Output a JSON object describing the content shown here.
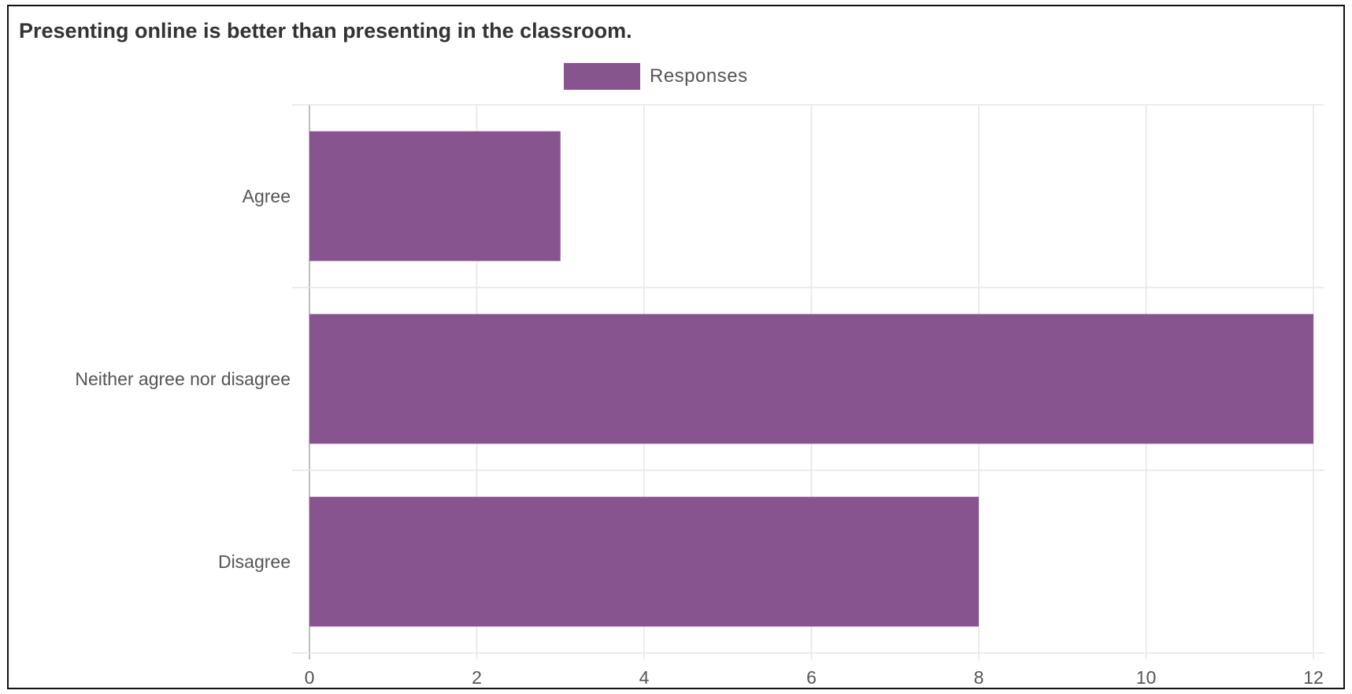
{
  "chart_data": {
    "type": "bar",
    "orientation": "horizontal",
    "title": "Presenting online is better than presenting in the classroom.",
    "categories": [
      "Agree",
      "Neither agree nor disagree",
      "Disagree"
    ],
    "series": [
      {
        "name": "Responses",
        "values": [
          3,
          12,
          8
        ],
        "color": "#87548f"
      }
    ],
    "xlim": [
      0,
      12
    ],
    "xticks": [
      "0",
      "2",
      "4",
      "6",
      "8",
      "10",
      "12"
    ],
    "grid": true,
    "legend_position": "top"
  }
}
